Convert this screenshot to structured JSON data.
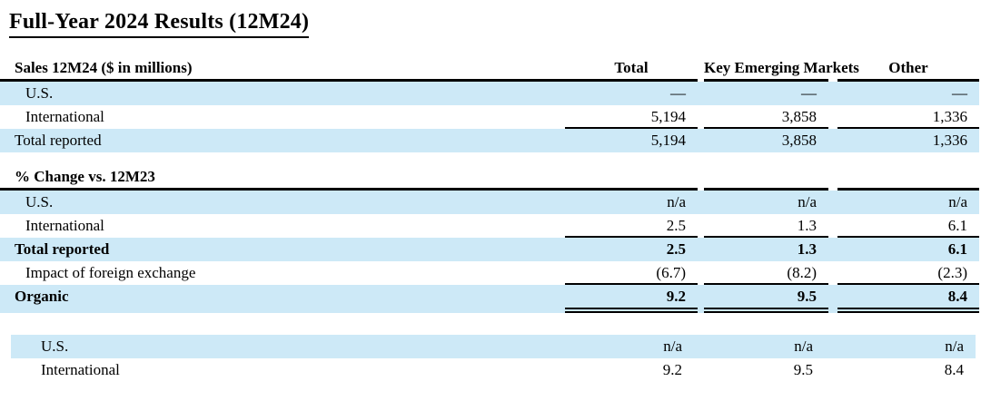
{
  "title": "Full-Year 2024 Results (12M24)",
  "colors": {
    "row_highlight": "#cde9f7",
    "rule": "#000000",
    "text": "#000000"
  },
  "table": {
    "column_headers": [
      "Total",
      "Key Emerging Markets",
      "Other"
    ],
    "sections": [
      {
        "header": "Sales 12M24 ($ in millions)",
        "rows": [
          {
            "label": "U.S.",
            "values": [
              "—",
              "—",
              "—"
            ]
          },
          {
            "label": "International",
            "values": [
              "5,194",
              "3,858",
              "1,336"
            ]
          },
          {
            "label": "Total reported",
            "values": [
              "5,194",
              "3,858",
              "1,336"
            ]
          }
        ]
      },
      {
        "header": "% Change vs. 12M23",
        "rows": [
          {
            "label": "U.S.",
            "values": [
              "n/a",
              "n/a",
              "n/a"
            ]
          },
          {
            "label": "International",
            "values": [
              "2.5",
              "1.3",
              "6.1"
            ]
          },
          {
            "label": "Total reported",
            "values": [
              "2.5",
              "1.3",
              "6.1"
            ]
          },
          {
            "label": "Impact of foreign exchange",
            "values": [
              "(6.7)",
              "(8.2)",
              "(2.3)"
            ]
          },
          {
            "label": "Organic",
            "values": [
              "9.2",
              "9.5",
              "8.4"
            ]
          }
        ]
      },
      {
        "rows": [
          {
            "label": "U.S.",
            "values": [
              "n/a",
              "n/a",
              "n/a"
            ]
          },
          {
            "label": "International",
            "values": [
              "9.2",
              "9.5",
              "8.4"
            ]
          }
        ]
      }
    ]
  }
}
